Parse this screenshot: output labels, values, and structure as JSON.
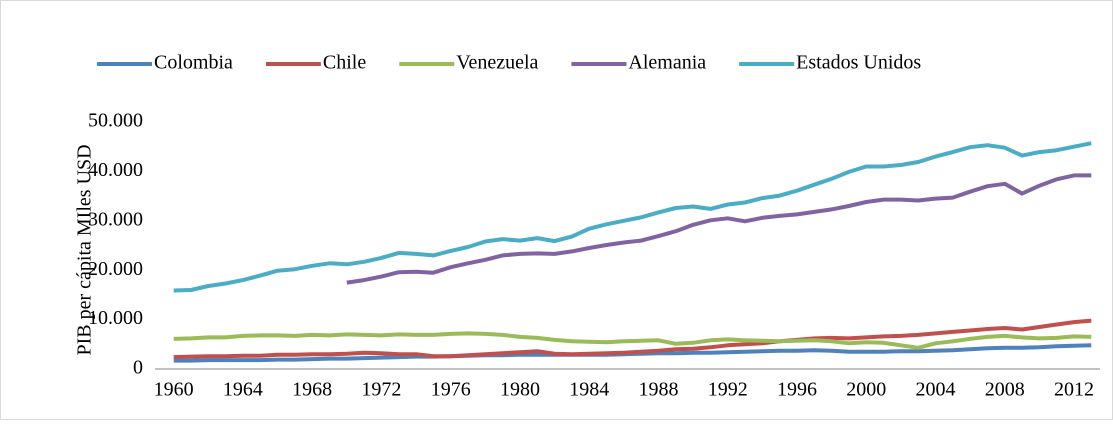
{
  "chart_data": {
    "type": "line",
    "y_label": "PIB per cápita MIles USD",
    "categories": [
      "1960",
      null,
      null,
      null,
      "1964",
      null,
      null,
      null,
      "1968",
      null,
      null,
      null,
      "1972",
      null,
      null,
      null,
      "1976",
      null,
      null,
      null,
      "1980",
      null,
      null,
      null,
      "1984",
      null,
      null,
      null,
      "1988",
      null,
      null,
      null,
      "1992",
      null,
      null,
      null,
      "1996",
      null,
      null,
      null,
      "2000",
      null,
      null,
      null,
      "2004",
      null,
      null,
      null,
      "2008",
      null,
      null,
      null,
      "2012",
      null
    ],
    "series": [
      {
        "name": "Colombia",
        "color": "#4f81bd",
        "values": [
          1700,
          1700,
          1800,
          1800,
          1800,
          1800,
          1900,
          1900,
          2000,
          2100,
          2100,
          2200,
          2300,
          2400,
          2500,
          2500,
          2600,
          2700,
          2800,
          2800,
          2900,
          2900,
          2900,
          2900,
          2900,
          2900,
          3000,
          3100,
          3200,
          3200,
          3300,
          3300,
          3400,
          3500,
          3600,
          3700,
          3700,
          3800,
          3700,
          3500,
          3500,
          3500,
          3600,
          3600,
          3700,
          3800,
          4000,
          4200,
          4300,
          4300,
          4400,
          4600,
          4700,
          4800
        ]
      },
      {
        "name": "Chile",
        "color": "#c0504d",
        "values": [
          2400,
          2500,
          2600,
          2600,
          2700,
          2700,
          2900,
          2900,
          3000,
          3000,
          3100,
          3300,
          3200,
          3000,
          3000,
          2600,
          2600,
          2800,
          3000,
          3200,
          3400,
          3600,
          3100,
          3000,
          3100,
          3200,
          3300,
          3500,
          3700,
          4000,
          4100,
          4400,
          4800,
          5000,
          5200,
          5600,
          5900,
          6200,
          6300,
          6200,
          6400,
          6600,
          6700,
          6900,
          7200,
          7500,
          7800,
          8100,
          8300,
          8000,
          8500,
          9000,
          9500,
          9800
        ]
      },
      {
        "name": "Venezuela",
        "color": "#9bbb59",
        "values": [
          6100,
          6200,
          6400,
          6400,
          6700,
          6800,
          6800,
          6700,
          6900,
          6800,
          7000,
          6900,
          6800,
          7000,
          6900,
          6900,
          7100,
          7200,
          7100,
          6900,
          6500,
          6300,
          5900,
          5600,
          5500,
          5400,
          5600,
          5700,
          5800,
          5100,
          5300,
          5800,
          6000,
          5800,
          5700,
          5600,
          5700,
          5800,
          5600,
          5200,
          5400,
          5300,
          4800,
          4300,
          5200,
          5600,
          6100,
          6500,
          6700,
          6400,
          6200,
          6300,
          6600,
          6500
        ]
      },
      {
        "name": "Alemania",
        "color": "#8064a2",
        "values": [
          null,
          null,
          null,
          null,
          null,
          null,
          null,
          null,
          null,
          null,
          17500,
          18000,
          18700,
          19600,
          19700,
          19500,
          20600,
          21400,
          22100,
          23000,
          23300,
          23400,
          23300,
          23800,
          24500,
          25100,
          25600,
          26000,
          26900,
          27900,
          29200,
          30100,
          30500,
          29900,
          30600,
          31000,
          31300,
          31800,
          32300,
          33000,
          33800,
          34300,
          34300,
          34100,
          34500,
          34700,
          35900,
          37000,
          37500,
          35500,
          37100,
          38400,
          39200,
          39200
        ]
      },
      {
        "name": "Estados Unidos",
        "color": "#4bacc6",
        "values": [
          15900,
          16000,
          16800,
          17300,
          18000,
          18900,
          19900,
          20200,
          20900,
          21400,
          21200,
          21700,
          22500,
          23500,
          23300,
          23000,
          23900,
          24700,
          25800,
          26300,
          26000,
          26500,
          25900,
          26800,
          28400,
          29300,
          30000,
          30700,
          31700,
          32600,
          32900,
          32400,
          33300,
          33700,
          34600,
          35100,
          36100,
          37300,
          38500,
          39900,
          41000,
          41000,
          41300,
          41900,
          43000,
          43900,
          44900,
          45300,
          44800,
          43200,
          43900,
          44300,
          45000,
          45700
        ]
      }
    ],
    "ylim": [
      0,
      50000
    ],
    "yticks": [
      0,
      {
        "value": 10000,
        "label": "10.000"
      },
      {
        "value": 20000,
        "label": "20.000"
      },
      {
        "value": 30000,
        "label": "30.000"
      },
      {
        "value": 40000,
        "label": "40.000"
      },
      {
        "value": 50000,
        "label": "50.000"
      }
    ],
    "grid": false
  }
}
